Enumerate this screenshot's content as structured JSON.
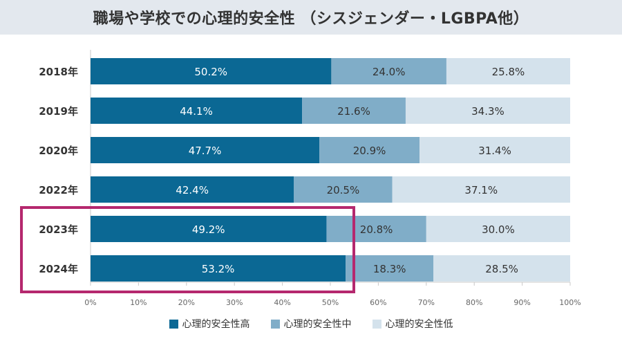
{
  "chart_data": {
    "type": "bar",
    "orientation": "horizontal",
    "stacked": true,
    "title": "職場や学校での心理的安全性 （シスジェンダー・LGBPA他）",
    "categories": [
      "2018年",
      "2019年",
      "2020年",
      "2022年",
      "2023年",
      "2024年"
    ],
    "series": [
      {
        "name": "心理的安全性高",
        "values": [
          50.2,
          44.1,
          47.7,
          42.4,
          49.2,
          53.2
        ],
        "labels": [
          "50.2%",
          "44.1%",
          "47.7%",
          "42.4%",
          "49.2%",
          "53.2%"
        ],
        "color": "#0b6894",
        "label_color": "#ffffff"
      },
      {
        "name": "心理的安全性中",
        "values": [
          24.0,
          21.6,
          20.9,
          20.5,
          20.8,
          18.3
        ],
        "labels": [
          "24.0%",
          "21.6%",
          "20.9%",
          "20.5%",
          "20.8%",
          "18.3%"
        ],
        "color": "#80adc8",
        "label_color": "#333333"
      },
      {
        "name": "心理的安全性低",
        "values": [
          25.8,
          34.3,
          31.4,
          37.1,
          30.0,
          28.5
        ],
        "labels": [
          "25.8%",
          "34.3%",
          "31.4%",
          "37.1%",
          "30.0%",
          "28.5%"
        ],
        "color": "#d4e2ec",
        "label_color": "#333333"
      }
    ],
    "xlim": [
      0,
      100
    ],
    "xticks": [
      "0%",
      "10%",
      "20%",
      "30%",
      "40%",
      "50%",
      "60%",
      "70%",
      "80%",
      "90%",
      "100%"
    ],
    "highlight": {
      "categories": [
        "2023年",
        "2024年"
      ],
      "color": "#b5286e"
    },
    "legend_position": "bottom"
  }
}
